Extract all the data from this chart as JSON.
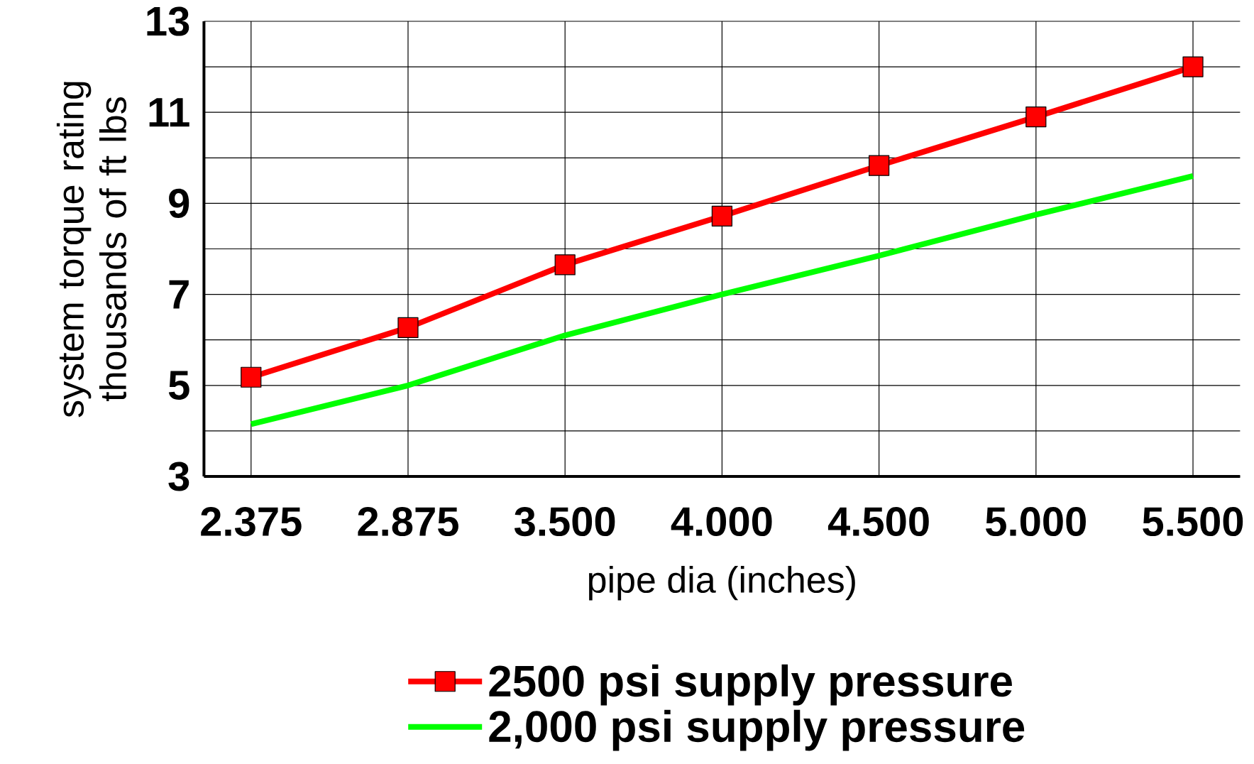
{
  "chart_data": {
    "type": "line",
    "xlabel": "pipe dia (inches)",
    "ylabel": "system torque rating thousands of ft lbs",
    "categories": [
      "2.375",
      "2.875",
      "3.500",
      "4.000",
      "4.500",
      "5.000",
      "5.500"
    ],
    "series": [
      {
        "name": "2500 psi supply pressure",
        "color": "#ff0000",
        "marker": "square",
        "values": [
          5.18,
          6.27,
          7.65,
          8.72,
          9.83,
          10.9,
          12.0
        ]
      },
      {
        "name": "2,000 psi supply pressure",
        "color": "#00ff00",
        "marker": "none",
        "values": [
          4.15,
          5.0,
          6.1,
          7.0,
          7.85,
          8.75,
          9.6
        ]
      }
    ],
    "ylim": [
      3,
      13
    ],
    "yticks": [
      3,
      {
        "value": 4,
        "label": null
      },
      5,
      {
        "value": 6,
        "label": null
      },
      7,
      {
        "value": 8,
        "label": null
      },
      9,
      {
        "value": 10,
        "label": null
      },
      11,
      {
        "value": 12,
        "label": null
      },
      13
    ],
    "grid": true,
    "legend": "bottom",
    "line_style": "solid"
  }
}
